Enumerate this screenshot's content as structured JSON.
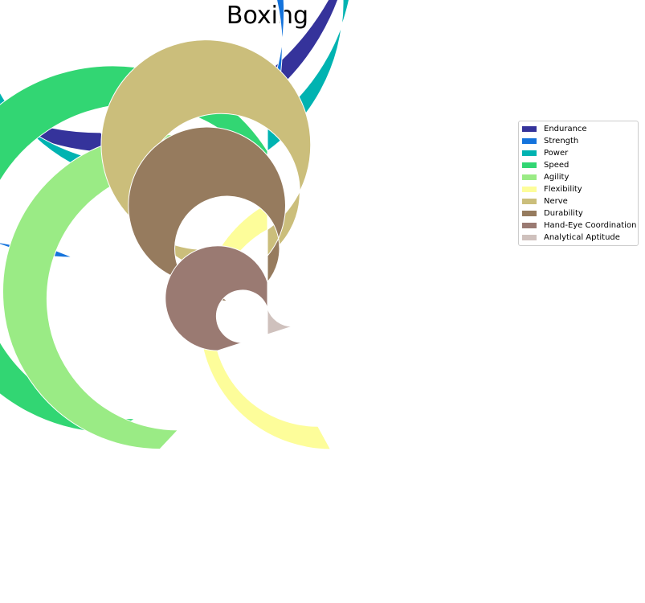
{
  "chart_data": {
    "type": "radial-bar",
    "title": "Boxing",
    "series": [
      {
        "name": "Endurance",
        "value": 89,
        "color": "#35339b"
      },
      {
        "name": "Strength",
        "value": 81,
        "color": "#1473dc"
      },
      {
        "name": "Power",
        "value": 90,
        "color": "#00b3b1"
      },
      {
        "name": "Speed",
        "value": 66,
        "color": "#32d673"
      },
      {
        "name": "Agility",
        "value": 62,
        "color": "#9aeb85"
      },
      {
        "name": "Flexibility",
        "value": 42,
        "color": "#fdfd9a"
      },
      {
        "name": "Nerve",
        "value": 90,
        "color": "#cbbe7b"
      },
      {
        "name": "Durability",
        "value": 86,
        "color": "#967b5e"
      },
      {
        "name": "Hand-Eye Coordination",
        "value": 70,
        "color": "#9a7a72"
      },
      {
        "name": "Analytical Aptitude",
        "value": 20,
        "color": "#cfc1bd"
      }
    ],
    "max_value": 100,
    "legend_position": "right"
  }
}
